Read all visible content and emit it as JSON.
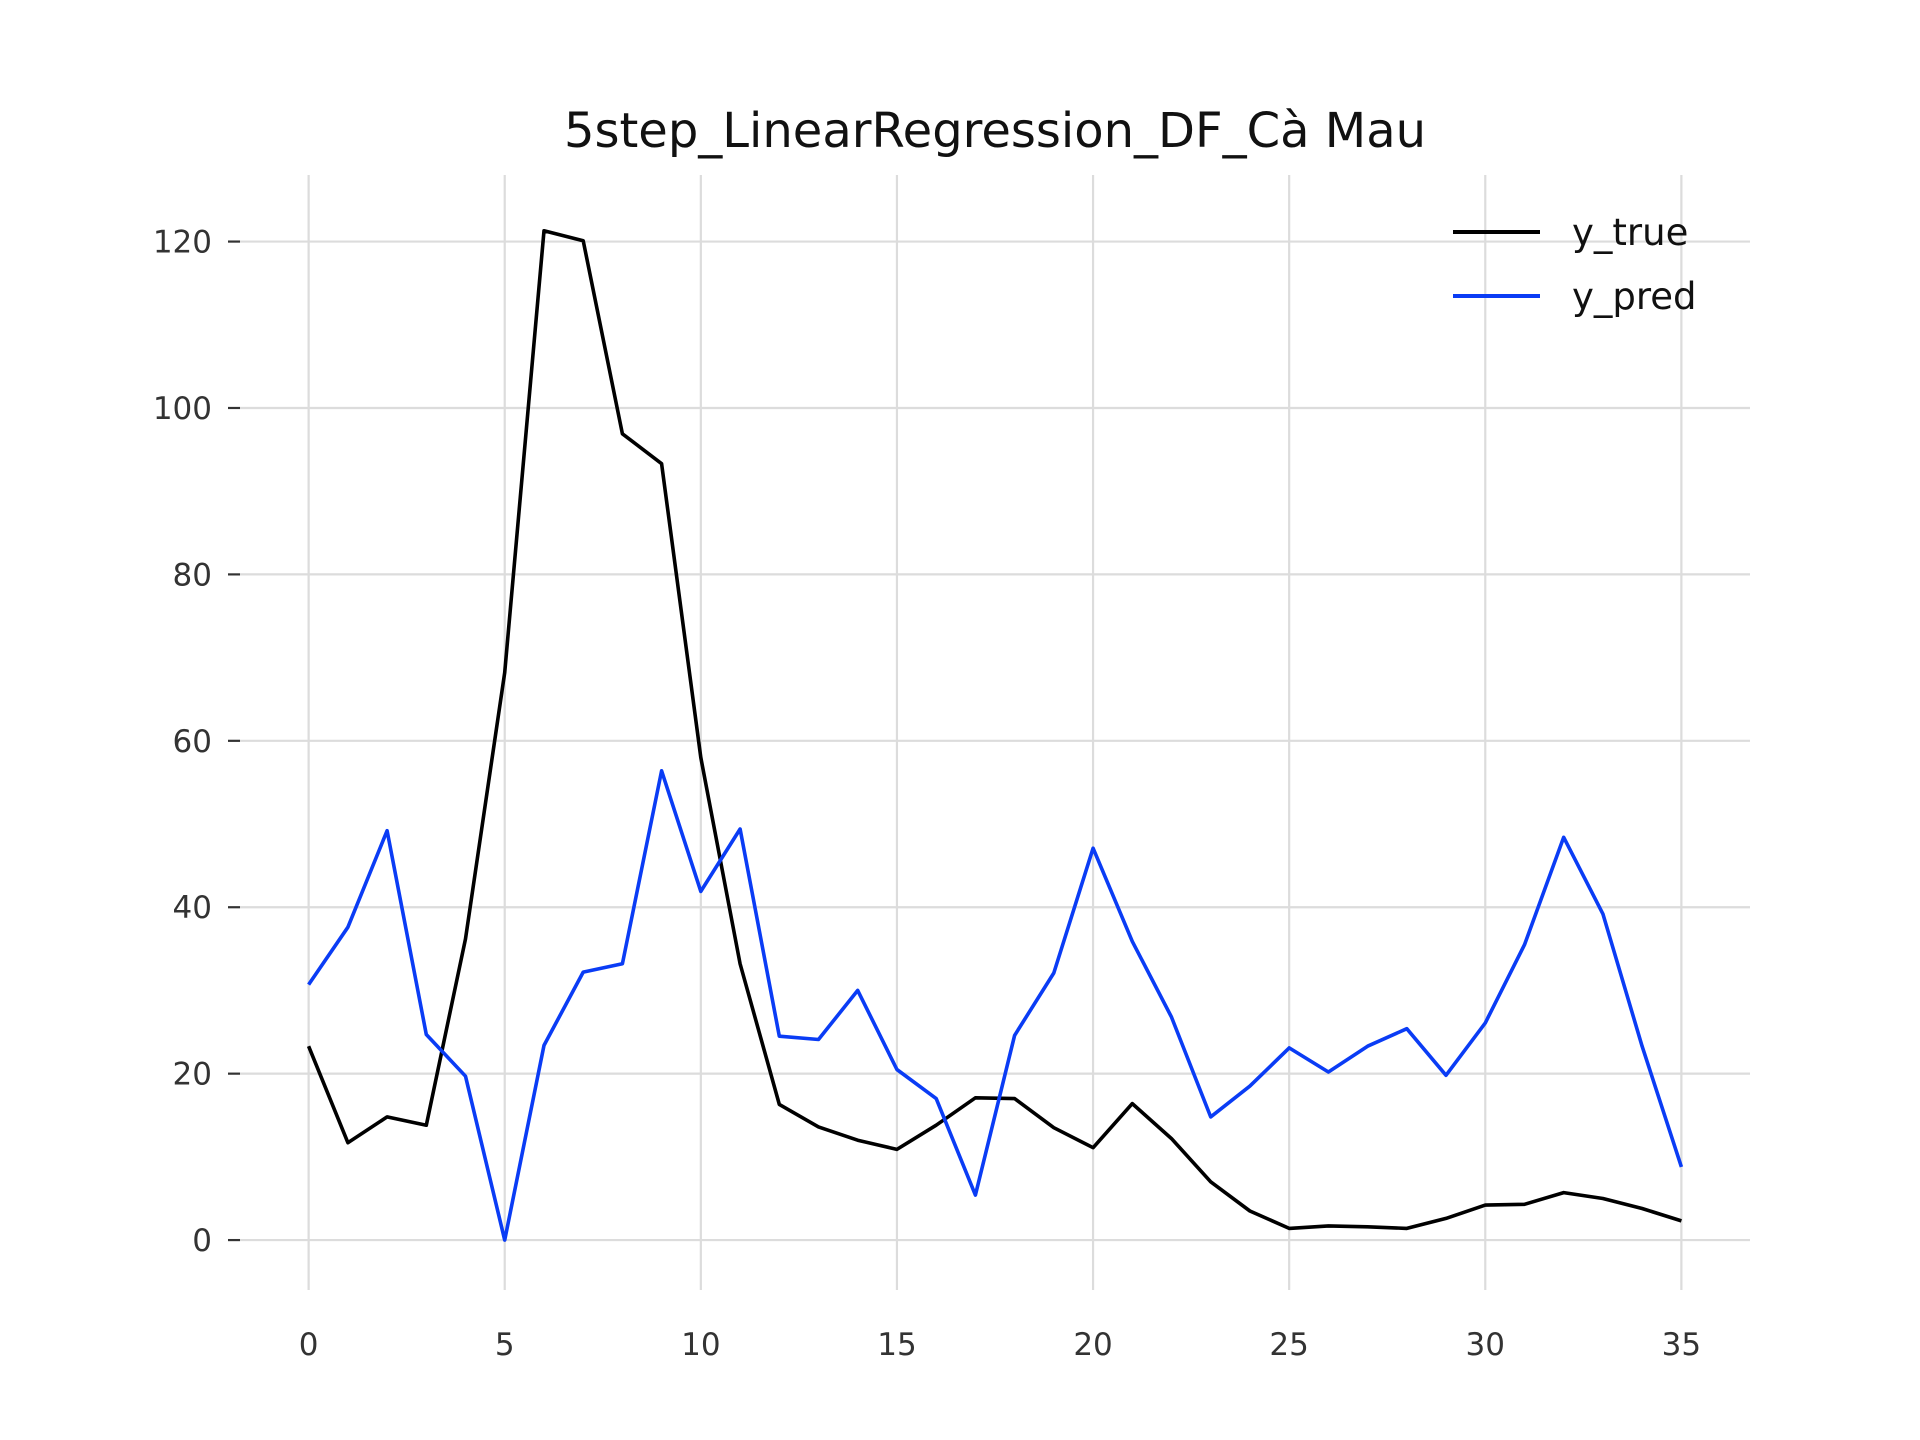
{
  "chart_data": {
    "type": "line",
    "title": "5step_LinearRegression_DF_Cà Mau",
    "xlabel": "",
    "ylabel": "",
    "xlim": [
      -1.75,
      36.75
    ],
    "ylim": [
      -6,
      128
    ],
    "x_ticks": [
      0,
      5,
      10,
      15,
      20,
      25,
      30,
      35
    ],
    "y_ticks": [
      0,
      20,
      40,
      60,
      80,
      100,
      120
    ],
    "grid": true,
    "legend_position": "top-right",
    "x": [
      0,
      1,
      2,
      3,
      4,
      5,
      6,
      7,
      8,
      9,
      10,
      11,
      12,
      13,
      14,
      15,
      16,
      17,
      18,
      19,
      20,
      21,
      22,
      23,
      24,
      25,
      26,
      27,
      28,
      29,
      30,
      31,
      32,
      33,
      34,
      35
    ],
    "series": [
      {
        "name": "y_true",
        "color": "#000000",
        "values": [
          23.3,
          11.7,
          14.8,
          13.8,
          36.2,
          68.2,
          121.3,
          120.1,
          96.9,
          93.3,
          58.0,
          33.2,
          16.3,
          13.6,
          12.0,
          10.9,
          13.8,
          17.1,
          17.0,
          13.5,
          11.1,
          16.4,
          12.2,
          7.0,
          3.5,
          1.4,
          1.7,
          1.6,
          1.4,
          2.6,
          4.2,
          4.3,
          5.7,
          5.0,
          3.8,
          2.3
        ]
      },
      {
        "name": "y_pred",
        "color": "#0a3cf5",
        "values": [
          30.7,
          37.6,
          49.2,
          24.7,
          19.7,
          0.0,
          23.4,
          32.2,
          33.2,
          56.4,
          41.9,
          49.4,
          24.5,
          24.1,
          30.0,
          20.5,
          17.0,
          5.4,
          24.6,
          32.1,
          47.1,
          35.9,
          26.8,
          14.8,
          18.5,
          23.1,
          20.2,
          23.3,
          25.4,
          19.8,
          26.1,
          35.5,
          48.4,
          39.2,
          23.3,
          8.8
        ]
      }
    ]
  }
}
